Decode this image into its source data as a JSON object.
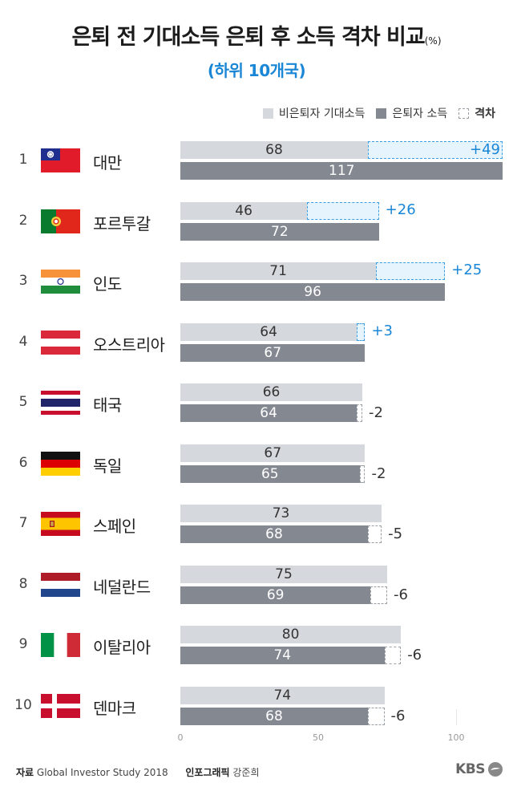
{
  "title": "은퇴 전 기대소득 은퇴 후 소득 격차 비교",
  "title_unit": "(%)",
  "subtitle": "(하위 10개국)",
  "legend": {
    "pre": "비은퇴자 기대소득",
    "post": "은퇴자 소득",
    "gap": "격차"
  },
  "colors": {
    "pre": "#d5d8dc",
    "post": "#838891",
    "gap_positive": "#1a86d6"
  },
  "footer": {
    "source_label": "자료",
    "source": "Global Investor Study 2018",
    "graphic_label": "인포그래픽",
    "graphic_author": "강준희",
    "logo": "KBS"
  },
  "chart_data": {
    "type": "bar",
    "orientation": "horizontal",
    "categories": [
      "대만",
      "포르투갈",
      "인도",
      "오스트리아",
      "태국",
      "독일",
      "스페인",
      "네덜란드",
      "이탈리아",
      "덴마크"
    ],
    "ranks": [
      "1",
      "2",
      "3",
      "4",
      "5",
      "6",
      "7",
      "8",
      "9",
      "10"
    ],
    "flags": [
      "taiwan",
      "portugal",
      "india",
      "austria",
      "thailand",
      "germany",
      "spain",
      "netherlands",
      "italy",
      "denmark"
    ],
    "series": [
      {
        "name": "비은퇴자 기대소득",
        "values": [
          68,
          46,
          71,
          64,
          66,
          67,
          73,
          75,
          80,
          74
        ]
      },
      {
        "name": "은퇴자 소득",
        "values": [
          117,
          72,
          96,
          67,
          64,
          65,
          68,
          69,
          74,
          68
        ]
      }
    ],
    "gap": {
      "name": "격차",
      "labels": [
        "+49",
        "+26",
        "+25",
        "+3",
        "-2",
        "-2",
        "-5",
        "-6",
        "-6",
        "-6"
      ]
    },
    "xlim": [
      0,
      117
    ],
    "xticks": [
      "0",
      "50",
      "100"
    ],
    "grid": false,
    "legend_position": "top-right"
  }
}
